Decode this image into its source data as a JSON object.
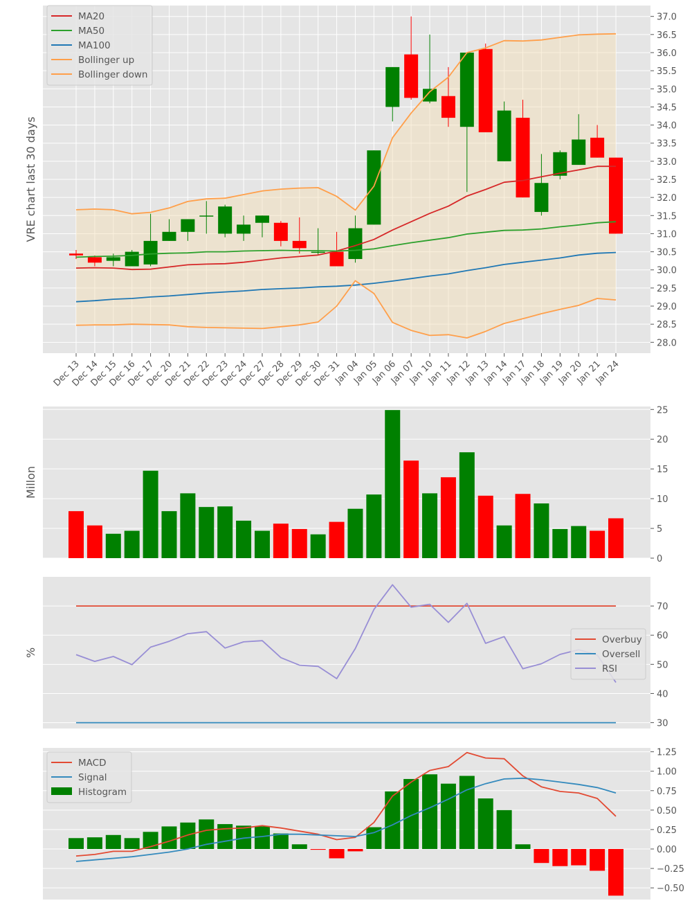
{
  "dates": [
    "Dec 13",
    "Dec 14",
    "Dec 15",
    "Dec 16",
    "Dec 17",
    "Dec 20",
    "Dec 21",
    "Dec 22",
    "Dec 23",
    "Dec 24",
    "Dec 27",
    "Dec 28",
    "Dec 29",
    "Dec 30",
    "Dec 31",
    "Jan 04",
    "Jan 05",
    "Jan 06",
    "Jan 07",
    "Jan 10",
    "Jan 11",
    "Jan 12",
    "Jan 13",
    "Jan 14",
    "Jan 17",
    "Jan 18",
    "Jan 19",
    "Jan 20",
    "Jan 21",
    "Jan 24"
  ],
  "colors": {
    "up": "#008000",
    "down": "#ff0000",
    "ma20": "#d62728",
    "ma50": "#2ca02c",
    "ma100": "#1f77b4",
    "bollinger": "#ff9f4a",
    "band_fill": "#f5deb3",
    "overbuy": "#e24a33",
    "oversell": "#348abd",
    "rsi": "#988ed5",
    "macd": "#e24a33",
    "signal": "#348abd",
    "histogram": "#008000",
    "panel_bg": "#e5e5e5",
    "grid": "#ffffff"
  },
  "chart_data": [
    {
      "type": "candlestick",
      "ylabel": "VRE chart last 30 days",
      "ylim": [
        27.7,
        37.3
      ],
      "yticks": [
        28.0,
        28.5,
        29.0,
        29.5,
        30.0,
        30.5,
        31.0,
        31.5,
        32.0,
        32.5,
        33.0,
        33.5,
        34.0,
        34.5,
        35.0,
        35.5,
        36.0,
        36.5,
        37.0
      ],
      "legend_position": "top-left",
      "open": [
        30.45,
        30.35,
        30.25,
        30.1,
        30.15,
        30.8,
        31.05,
        31.5,
        31.0,
        31.0,
        31.3,
        31.3,
        30.8,
        30.5,
        30.5,
        30.3,
        31.25,
        34.5,
        35.95,
        34.65,
        34.8,
        33.95,
        36.1,
        33.0,
        34.2,
        31.6,
        32.6,
        32.9,
        33.65,
        33.1
      ],
      "close": [
        30.4,
        30.2,
        30.35,
        30.5,
        30.8,
        31.05,
        31.4,
        31.5,
        31.75,
        31.25,
        31.5,
        30.8,
        30.6,
        30.5,
        30.1,
        31.15,
        33.3,
        35.6,
        34.75,
        35.0,
        34.2,
        36.0,
        33.8,
        34.4,
        32.0,
        32.4,
        33.25,
        33.6,
        33.1,
        31.0
      ],
      "high": [
        30.55,
        30.4,
        30.45,
        30.55,
        31.55,
        31.4,
        31.4,
        31.9,
        31.8,
        31.5,
        31.5,
        31.35,
        31.45,
        31.15,
        31.05,
        31.5,
        33.3,
        35.6,
        37.0,
        36.5,
        35.6,
        36.0,
        36.25,
        34.65,
        34.7,
        33.2,
        33.3,
        34.3,
        34.0,
        33.1
      ],
      "low": [
        30.3,
        30.1,
        30.1,
        30.1,
        30.1,
        30.8,
        30.8,
        31.0,
        30.9,
        30.8,
        30.9,
        30.65,
        30.45,
        30.4,
        30.1,
        30.2,
        31.25,
        34.1,
        34.7,
        34.6,
        33.95,
        32.15,
        33.8,
        33.0,
        32.0,
        31.5,
        32.5,
        32.9,
        33.1,
        31.0
      ],
      "series": [
        {
          "name": "MA20",
          "values": [
            30.05,
            30.06,
            30.05,
            30.01,
            30.02,
            30.08,
            30.14,
            30.16,
            30.17,
            30.21,
            30.27,
            30.33,
            30.37,
            30.41,
            30.52,
            30.67,
            30.84,
            31.1,
            31.33,
            31.56,
            31.76,
            32.04,
            32.22,
            32.42,
            32.47,
            32.57,
            32.67,
            32.76,
            32.86,
            32.86
          ]
        },
        {
          "name": "MA50",
          "values": [
            30.35,
            30.37,
            30.38,
            30.4,
            30.44,
            30.46,
            30.47,
            30.5,
            30.5,
            30.52,
            30.53,
            30.54,
            30.53,
            30.53,
            30.52,
            30.54,
            30.58,
            30.67,
            30.75,
            30.82,
            30.89,
            30.99,
            31.04,
            31.09,
            31.1,
            31.13,
            31.19,
            31.24,
            31.3,
            31.33
          ]
        },
        {
          "name": "MA100",
          "values": [
            29.12,
            29.15,
            29.19,
            29.21,
            29.25,
            29.28,
            29.32,
            29.36,
            29.39,
            29.42,
            29.46,
            29.48,
            29.5,
            29.53,
            29.55,
            29.58,
            29.63,
            29.69,
            29.76,
            29.83,
            29.89,
            29.98,
            30.06,
            30.15,
            30.21,
            30.27,
            30.33,
            30.41,
            30.46,
            30.48
          ]
        },
        {
          "name": "Bollinger up",
          "values": [
            31.66,
            31.68,
            31.66,
            31.55,
            31.59,
            31.71,
            31.89,
            31.96,
            31.98,
            32.08,
            32.18,
            32.23,
            32.26,
            32.27,
            32.03,
            31.65,
            32.31,
            33.65,
            34.33,
            34.92,
            35.32,
            36.0,
            36.13,
            36.33,
            36.32,
            36.35,
            36.42,
            36.49,
            36.51,
            36.52
          ]
        },
        {
          "name": "Bollinger down",
          "values": [
            28.47,
            28.48,
            28.48,
            28.5,
            28.49,
            28.48,
            28.43,
            28.41,
            28.4,
            28.39,
            28.38,
            28.43,
            28.48,
            28.56,
            29.0,
            29.7,
            29.35,
            28.55,
            28.33,
            28.19,
            28.21,
            28.12,
            28.3,
            28.52,
            28.65,
            28.79,
            28.91,
            29.02,
            29.21,
            29.17
          ]
        }
      ]
    },
    {
      "type": "bar",
      "ylabel": "Millon",
      "ylim": [
        0,
        25.5
      ],
      "yticks": [
        0,
        5,
        10,
        15,
        20,
        25
      ],
      "values": [
        7.9,
        5.5,
        4.1,
        4.6,
        14.7,
        7.9,
        10.9,
        8.6,
        8.7,
        6.3,
        4.6,
        5.8,
        4.9,
        4.0,
        6.1,
        8.3,
        10.7,
        24.9,
        16.4,
        10.9,
        13.6,
        17.8,
        10.5,
        5.5,
        10.8,
        9.2,
        4.9,
        5.4,
        4.6,
        6.7
      ]
    },
    {
      "type": "line",
      "ylabel": "%",
      "ylim": [
        28,
        80
      ],
      "yticks": [
        30,
        40,
        50,
        60,
        70
      ],
      "legend_position": "center-right",
      "series": [
        {
          "name": "Overbuy",
          "values": [
            70,
            70,
            70,
            70,
            70,
            70,
            70,
            70,
            70,
            70,
            70,
            70,
            70,
            70,
            70,
            70,
            70,
            70,
            70,
            70,
            70,
            70,
            70,
            70,
            70,
            70,
            70,
            70,
            70,
            70
          ]
        },
        {
          "name": "Oversell",
          "values": [
            30,
            30,
            30,
            30,
            30,
            30,
            30,
            30,
            30,
            30,
            30,
            30,
            30,
            30,
            30,
            30,
            30,
            30,
            30,
            30,
            30,
            30,
            30,
            30,
            30,
            30,
            30,
            30,
            30,
            30
          ]
        },
        {
          "name": "RSI",
          "values": [
            53.3,
            51.0,
            52.7,
            49.9,
            55.9,
            57.9,
            60.5,
            61.2,
            55.6,
            57.7,
            58.1,
            52.3,
            49.7,
            49.3,
            45.1,
            55.4,
            68.8,
            77.3,
            69.6,
            70.6,
            64.4,
            70.9,
            57.2,
            59.5,
            48.5,
            50.2,
            53.4,
            55.0,
            53.2,
            43.8
          ]
        }
      ]
    },
    {
      "type": "line",
      "ylim": [
        -0.65,
        1.3
      ],
      "yticks": [
        -0.5,
        -0.25,
        0.0,
        0.25,
        0.5,
        0.75,
        1.0,
        1.25
      ],
      "ytick_labels": [
        "−0.50",
        "−0.25",
        "0.00",
        "0.25",
        "0.50",
        "0.75",
        "1.00",
        "1.25"
      ],
      "legend_position": "top-left",
      "series": [
        {
          "name": "MACD",
          "values": [
            -0.09,
            -0.07,
            -0.03,
            -0.03,
            0.03,
            0.1,
            0.18,
            0.24,
            0.26,
            0.27,
            0.3,
            0.27,
            0.23,
            0.19,
            0.12,
            0.15,
            0.34,
            0.68,
            0.86,
            1.01,
            1.06,
            1.24,
            1.17,
            1.16,
            0.94,
            0.8,
            0.74,
            0.72,
            0.65,
            0.42
          ]
        },
        {
          "name": "Signal",
          "values": [
            -0.16,
            -0.14,
            -0.12,
            -0.1,
            -0.07,
            -0.04,
            0.0,
            0.06,
            0.1,
            0.14,
            0.16,
            0.19,
            0.19,
            0.18,
            0.17,
            0.16,
            0.21,
            0.31,
            0.43,
            0.53,
            0.64,
            0.76,
            0.84,
            0.9,
            0.91,
            0.89,
            0.86,
            0.83,
            0.79,
            0.72
          ]
        },
        {
          "name": "Histogram",
          "values": [
            0.14,
            0.15,
            0.18,
            0.14,
            0.22,
            0.29,
            0.34,
            0.38,
            0.32,
            0.3,
            0.29,
            0.2,
            0.06,
            -0.01,
            -0.12,
            -0.03,
            0.28,
            0.74,
            0.9,
            0.96,
            0.84,
            0.94,
            0.65,
            0.5,
            0.06,
            -0.18,
            -0.22,
            -0.21,
            -0.28,
            -0.6
          ]
        }
      ]
    }
  ]
}
